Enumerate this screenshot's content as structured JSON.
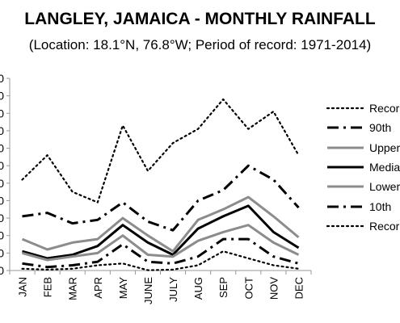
{
  "chart_data": {
    "type": "line",
    "title": "LANGLEY, JAMAICA - MONTHLY RAINFALL",
    "subtitle": "(Location: 18.1°N, 76.8°W; Period of record: 1971-2014)",
    "categories": [
      "JAN",
      "FEB",
      "MAR",
      "APR",
      "MAY",
      "JUNE",
      "JULY",
      "AUG",
      "SEP",
      "OCT",
      "NOV",
      "DEC"
    ],
    "y_ticks": [
      "0",
      "0",
      "0",
      "0",
      "0",
      "0",
      "0",
      "0",
      "0",
      "0",
      "0",
      "0"
    ],
    "ylim": [
      0,
      11
    ],
    "grid": false,
    "legend_position": "right",
    "series": [
      {
        "name": "Record",
        "style": "dotted",
        "color": "#000000",
        "values": [
          5.2,
          6.6,
          4.5,
          3.9,
          8.3,
          5.7,
          7.3,
          8.1,
          9.8,
          8.1,
          9.1,
          6.6
        ]
      },
      {
        "name": "90th",
        "style": "dashdot",
        "color": "#000000",
        "values": [
          3.1,
          3.3,
          2.7,
          2.9,
          3.9,
          2.8,
          2.3,
          4.0,
          4.6,
          6.0,
          5.2,
          3.6
        ]
      },
      {
        "name": "Upper",
        "style": "solid",
        "color": "#8c8c8c",
        "values": [
          1.8,
          1.2,
          1.6,
          1.8,
          3.0,
          2.0,
          1.1,
          2.9,
          3.5,
          4.2,
          3.1,
          1.9
        ]
      },
      {
        "name": "Median",
        "style": "solid",
        "color": "#000000",
        "values": [
          1.1,
          0.7,
          0.9,
          1.4,
          2.6,
          1.6,
          0.9,
          2.4,
          3.1,
          3.7,
          2.2,
          1.3
        ]
      },
      {
        "name": "Lower",
        "style": "solid",
        "color": "#8c8c8c",
        "values": [
          1.0,
          0.6,
          0.8,
          1.0,
          2.0,
          0.9,
          0.8,
          1.7,
          2.2,
          2.6,
          1.6,
          0.9
        ]
      },
      {
        "name": "10th",
        "style": "dashdot",
        "color": "#000000",
        "values": [
          0.4,
          0.2,
          0.3,
          0.5,
          1.5,
          0.5,
          0.4,
          0.8,
          1.8,
          1.8,
          0.8,
          0.4
        ]
      },
      {
        "name": "Record",
        "style": "dotted",
        "color": "#000000",
        "values": [
          0.1,
          0.05,
          0.1,
          0.3,
          0.4,
          0.02,
          0.05,
          0.3,
          1.1,
          0.7,
          0.3,
          0.1
        ]
      }
    ]
  },
  "legend": {
    "items": [
      "Record",
      "90th",
      "Upper",
      "Median",
      "Lower",
      "10th",
      "Record"
    ]
  }
}
